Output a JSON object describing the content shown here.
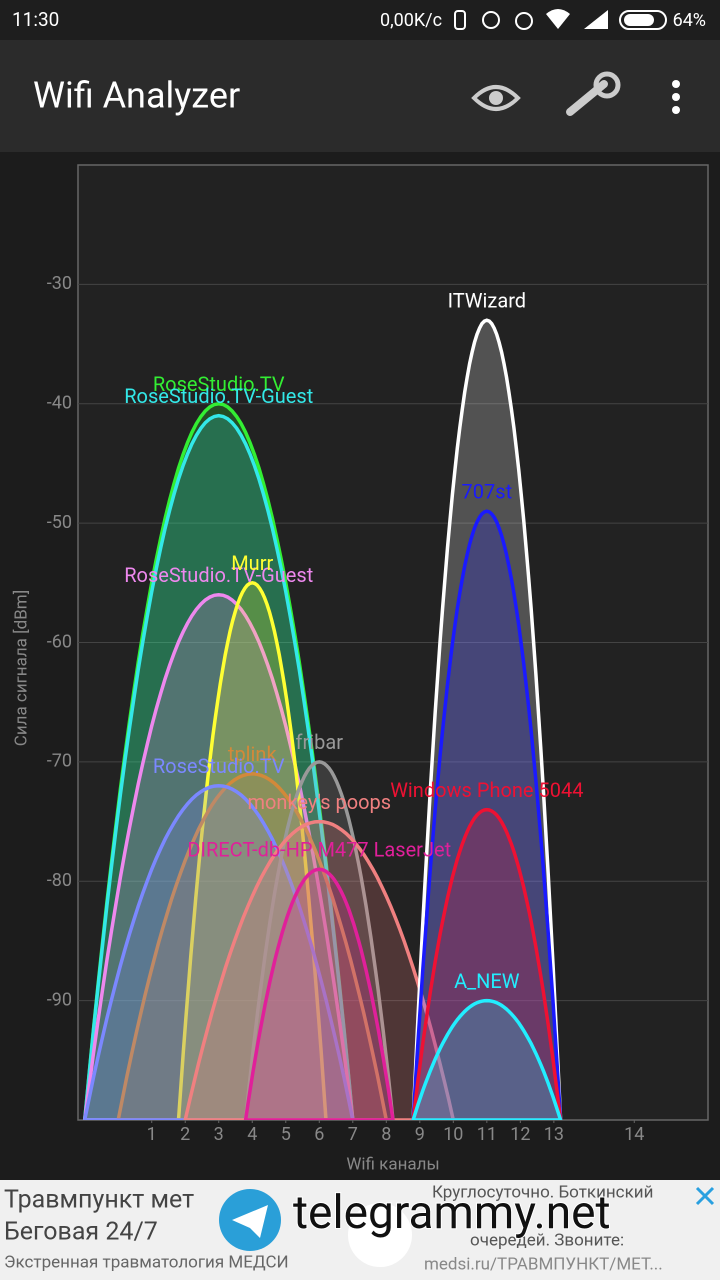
{
  "status_bar": {
    "time": "11:30",
    "speed": "0,00K/c",
    "battery": "64%"
  },
  "app_bar": {
    "title": "Wifi Analyzer"
  },
  "chart_data": {
    "type": "wifi-channel",
    "y_label": "Сила сигнала [dBm]",
    "x_label": "Wifi каналы",
    "xlim": [
      2401,
      2495
    ],
    "ylim": [
      -100,
      -20
    ],
    "xticks": [
      {
        "value": 2412,
        "label": "1"
      },
      {
        "value": 2417,
        "label": "2"
      },
      {
        "value": 2422,
        "label": "3"
      },
      {
        "value": 2427,
        "label": "4"
      },
      {
        "value": 2432,
        "label": "5"
      },
      {
        "value": 2437,
        "label": "6"
      },
      {
        "value": 2442,
        "label": "7"
      },
      {
        "value": 2447,
        "label": "8"
      },
      {
        "value": 2452,
        "label": "9"
      },
      {
        "value": 2457,
        "label": "10"
      },
      {
        "value": 2462,
        "label": "11"
      },
      {
        "value": 2467,
        "label": "12"
      },
      {
        "value": 2472,
        "label": "13"
      },
      {
        "value": 2484,
        "label": "14"
      }
    ],
    "yticks": [
      -90,
      -80,
      -70,
      -60,
      -50,
      -40,
      -30
    ],
    "grid": true,
    "networks": [
      {
        "name": "RoseStudio.TV",
        "color": "#33ee33",
        "frequency": 2422,
        "width": 40,
        "signal": -40
      },
      {
        "name": "RoseStudio.TV-Guest",
        "color": "#33e8e8",
        "frequency": 2422,
        "width": 40,
        "signal": -41
      },
      {
        "name": "RoseStudio.TV-Guest",
        "color": "#ee88ee",
        "frequency": 2422,
        "width": 40,
        "signal": -56
      },
      {
        "name": "Murr",
        "color": "#ffff33",
        "frequency": 2427,
        "width": 22,
        "signal": -55
      },
      {
        "name": "tplink",
        "color": "#d2893a",
        "frequency": 2427,
        "width": 40,
        "signal": -71
      },
      {
        "name": "RoseStudio.TV",
        "color": "#7b88ff",
        "frequency": 2422,
        "width": 40,
        "signal": -72
      },
      {
        "name": "fribar",
        "color": "#999999",
        "frequency": 2437,
        "width": 22,
        "signal": -70
      },
      {
        "name": "monkey's poops",
        "color": "#f08080",
        "frequency": 2437,
        "width": 40,
        "signal": -75
      },
      {
        "name": "DIRECT-db-HP M477 LaserJet",
        "color": "#e0209a",
        "frequency": 2437,
        "width": 22,
        "signal": -79
      },
      {
        "name": "ITWizard",
        "color": "#ffffff",
        "frequency": 2462,
        "width": 22,
        "signal": -33
      },
      {
        "name": "707st",
        "color": "#1a1aff",
        "frequency": 2462,
        "width": 22,
        "signal": -49
      },
      {
        "name": "Windows Phone 5044",
        "color": "#ee1133",
        "frequency": 2462,
        "width": 22,
        "signal": -74
      },
      {
        "name": "A_NEW",
        "color": "#22eeff",
        "frequency": 2462,
        "width": 22,
        "signal": -90
      }
    ]
  },
  "ad": {
    "title_1": "Травмпункт мет",
    "title_2": "Беговая 24/7",
    "subtitle": "Экстренная травматология МЕДСИ",
    "text_1": "Круглосуточно. Боткинский",
    "text_2": "очередей. Звоните:",
    "url": "medsi.ru/ТРАВМПУНКТ/МЕТ...",
    "watermark": "telegrammy.net"
  }
}
